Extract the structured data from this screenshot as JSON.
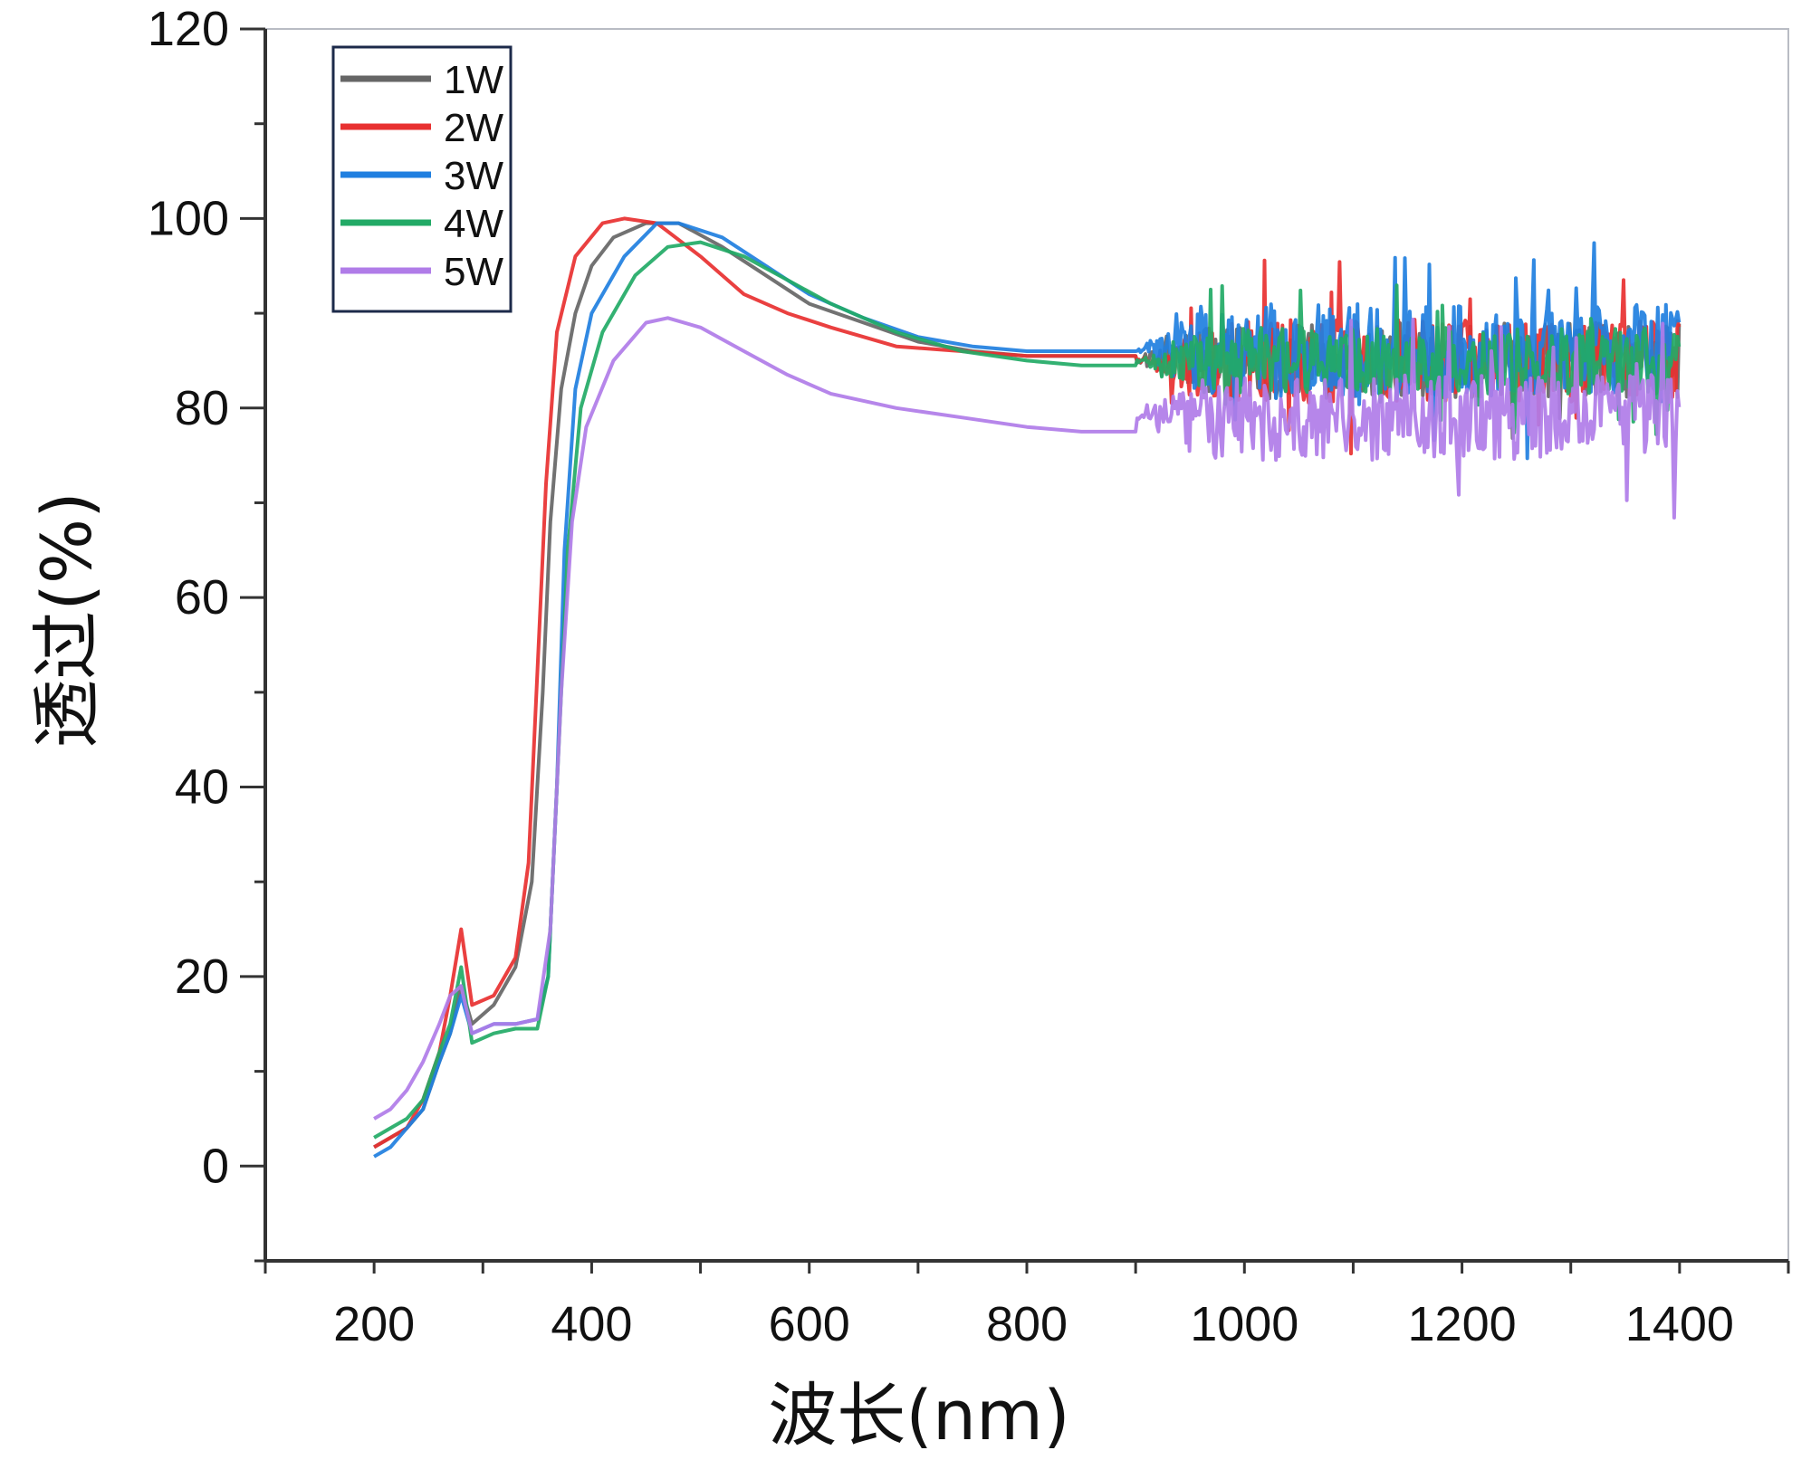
{
  "chart_data": {
    "type": "line",
    "xlabel": "波长(nm)",
    "ylabel": "透过(%)",
    "xlim": [
      100,
      1500
    ],
    "ylim": [
      -10,
      120
    ],
    "x_ticks": [
      200,
      400,
      600,
      800,
      1000,
      1200,
      1400
    ],
    "x_tick_labels": [
      "200",
      "400",
      "600",
      "800",
      "1000",
      "1200",
      "1400"
    ],
    "y_ticks": [
      0,
      20,
      40,
      60,
      80,
      100,
      120
    ],
    "y_tick_labels": [
      "0",
      "20",
      "40",
      "60",
      "80",
      "100",
      "120"
    ],
    "grid": false,
    "legend_position": "top-left",
    "series": [
      {
        "name": "1W",
        "color": "#666666",
        "points": [
          [
            200,
            2
          ],
          [
            215,
            3
          ],
          [
            230,
            4
          ],
          [
            245,
            6
          ],
          [
            260,
            11
          ],
          [
            270,
            14
          ],
          [
            280,
            19
          ],
          [
            290,
            15
          ],
          [
            310,
            17
          ],
          [
            330,
            21
          ],
          [
            345,
            30
          ],
          [
            355,
            50
          ],
          [
            362,
            68
          ],
          [
            372,
            82
          ],
          [
            385,
            90
          ],
          [
            400,
            95
          ],
          [
            420,
            98
          ],
          [
            450,
            99.5
          ],
          [
            480,
            99.5
          ],
          [
            520,
            97
          ],
          [
            560,
            94
          ],
          [
            600,
            91
          ],
          [
            650,
            89
          ],
          [
            700,
            87
          ],
          [
            750,
            86
          ],
          [
            800,
            85.5
          ],
          [
            850,
            85.5
          ],
          [
            900,
            85.5
          ]
        ],
        "noise": {
          "x_start": 900,
          "x_end": 1400,
          "center": 85,
          "amplitude": 8
        }
      },
      {
        "name": "2W",
        "color": "#e83030",
        "points": [
          [
            200,
            2
          ],
          [
            215,
            3
          ],
          [
            230,
            4
          ],
          [
            245,
            7
          ],
          [
            260,
            12
          ],
          [
            270,
            18
          ],
          [
            280,
            25
          ],
          [
            290,
            17
          ],
          [
            310,
            18
          ],
          [
            330,
            22
          ],
          [
            342,
            32
          ],
          [
            350,
            52
          ],
          [
            358,
            72
          ],
          [
            368,
            88
          ],
          [
            385,
            96
          ],
          [
            410,
            99.5
          ],
          [
            430,
            100
          ],
          [
            460,
            99.5
          ],
          [
            500,
            96
          ],
          [
            540,
            92
          ],
          [
            580,
            90
          ],
          [
            620,
            88.5
          ],
          [
            680,
            86.5
          ],
          [
            740,
            86
          ],
          [
            800,
            85.5
          ],
          [
            850,
            85.5
          ],
          [
            900,
            85.5
          ]
        ],
        "noise": {
          "x_start": 900,
          "x_end": 1400,
          "center": 85,
          "amplitude": 9
        }
      },
      {
        "name": "3W",
        "color": "#1f7fe0",
        "points": [
          [
            200,
            1
          ],
          [
            215,
            2
          ],
          [
            230,
            4
          ],
          [
            245,
            6
          ],
          [
            260,
            11
          ],
          [
            270,
            14
          ],
          [
            280,
            18
          ],
          [
            290,
            14
          ],
          [
            310,
            15
          ],
          [
            330,
            15
          ],
          [
            350,
            15.5
          ],
          [
            360,
            20
          ],
          [
            368,
            40
          ],
          [
            375,
            65
          ],
          [
            385,
            82
          ],
          [
            400,
            90
          ],
          [
            430,
            96
          ],
          [
            460,
            99.5
          ],
          [
            480,
            99.5
          ],
          [
            520,
            98
          ],
          [
            560,
            95
          ],
          [
            600,
            92
          ],
          [
            650,
            89.5
          ],
          [
            700,
            87.5
          ],
          [
            750,
            86.5
          ],
          [
            800,
            86
          ],
          [
            850,
            86
          ],
          [
            900,
            86
          ]
        ],
        "noise": {
          "x_start": 900,
          "x_end": 1400,
          "center": 86,
          "amplitude": 10
        }
      },
      {
        "name": "4W",
        "color": "#22aa66",
        "points": [
          [
            200,
            3
          ],
          [
            215,
            4
          ],
          [
            230,
            5
          ],
          [
            245,
            7
          ],
          [
            260,
            12
          ],
          [
            270,
            15
          ],
          [
            280,
            21
          ],
          [
            290,
            13
          ],
          [
            310,
            14
          ],
          [
            330,
            14.5
          ],
          [
            350,
            14.5
          ],
          [
            360,
            20
          ],
          [
            370,
            45
          ],
          [
            378,
            65
          ],
          [
            390,
            80
          ],
          [
            410,
            88
          ],
          [
            440,
            94
          ],
          [
            470,
            97
          ],
          [
            500,
            97.5
          ],
          [
            540,
            96
          ],
          [
            580,
            93.5
          ],
          [
            620,
            91
          ],
          [
            680,
            88
          ],
          [
            740,
            86
          ],
          [
            800,
            85
          ],
          [
            850,
            84.5
          ],
          [
            900,
            84.5
          ]
        ],
        "noise": {
          "x_start": 900,
          "x_end": 1400,
          "center": 85,
          "amplitude": 7
        }
      },
      {
        "name": "5W",
        "color": "#b07ce8",
        "points": [
          [
            200,
            5
          ],
          [
            215,
            6
          ],
          [
            230,
            8
          ],
          [
            245,
            11
          ],
          [
            260,
            15
          ],
          [
            270,
            18
          ],
          [
            280,
            19
          ],
          [
            290,
            14
          ],
          [
            310,
            15
          ],
          [
            330,
            15
          ],
          [
            350,
            15.5
          ],
          [
            362,
            25
          ],
          [
            372,
            50
          ],
          [
            382,
            68
          ],
          [
            395,
            78
          ],
          [
            420,
            85
          ],
          [
            450,
            89
          ],
          [
            470,
            89.5
          ],
          [
            500,
            88.5
          ],
          [
            540,
            86
          ],
          [
            580,
            83.5
          ],
          [
            620,
            81.5
          ],
          [
            680,
            80
          ],
          [
            740,
            79
          ],
          [
            800,
            78
          ],
          [
            850,
            77.5
          ],
          [
            900,
            77.5
          ]
        ],
        "noise": {
          "x_start": 900,
          "x_end": 1400,
          "center": 79,
          "amplitude": 9
        }
      }
    ]
  }
}
